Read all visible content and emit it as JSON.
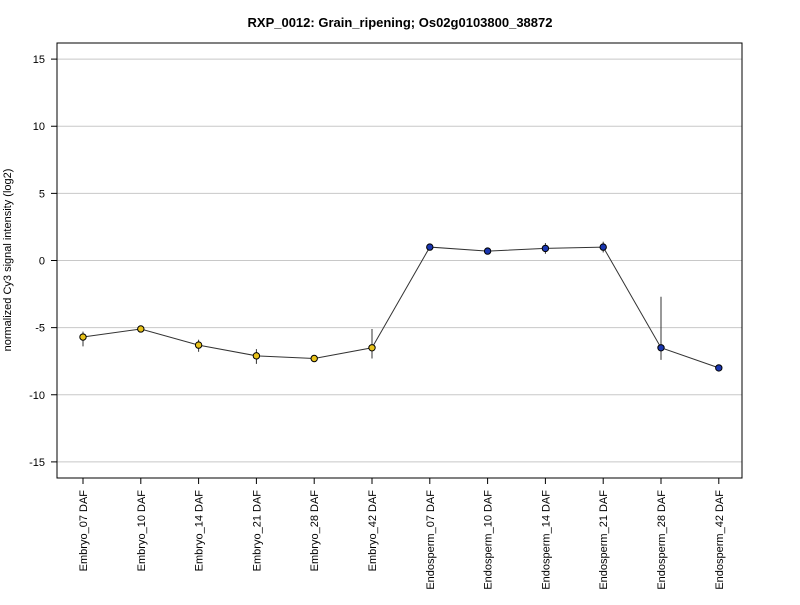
{
  "chart_data": {
    "type": "line",
    "title": "RXP_0012: Grain_ripening; Os02g0103800_38872",
    "xlabel": "",
    "ylabel": "normalized Cy3 signal intensity (log2)",
    "ylim": [
      -16.2,
      16.2
    ],
    "yticks": [
      -15,
      -10,
      -5,
      0,
      5,
      10,
      15
    ],
    "grid": true,
    "categories": [
      "Embryo_07 DAF",
      "Embryo_10 DAF",
      "Embryo_14 DAF",
      "Embryo_21 DAF",
      "Embryo_28 DAF",
      "Embryo_42 DAF",
      "Endosperm_07 DAF",
      "Endosperm_10 DAF",
      "Endosperm_14 DAF",
      "Endosperm_21 DAF",
      "Endosperm_28 DAF",
      "Endosperm_42 DAF"
    ],
    "series": [
      {
        "values": [
          -5.7,
          -5.1,
          -6.3,
          -7.1,
          -7.3,
          -6.5,
          1.0,
          0.7,
          0.9,
          1.0,
          -6.5,
          -8.0
        ],
        "err_low": [
          -6.4,
          -5.3,
          -6.8,
          -7.7,
          -7.4,
          -7.3,
          0.9,
          0.6,
          0.5,
          0.6,
          -7.4,
          -8.1
        ],
        "err_high": [
          -5.3,
          -4.9,
          -5.9,
          -6.6,
          -7.1,
          -5.1,
          1.1,
          0.8,
          1.3,
          1.4,
          -2.7,
          -7.9
        ],
        "point_colors": [
          "#e8c21a",
          "#e8c21a",
          "#e8c21a",
          "#e8c21a",
          "#e8c21a",
          "#e8c21a",
          "#1a36b0",
          "#1a36b0",
          "#1a36b0",
          "#1a36b0",
          "#1a36b0",
          "#1a36b0"
        ]
      }
    ],
    "colors": {
      "embryo": "#e8c21a",
      "endosperm": "#1a36b0",
      "line": "#333333",
      "grid": "#c8c8c8"
    }
  }
}
